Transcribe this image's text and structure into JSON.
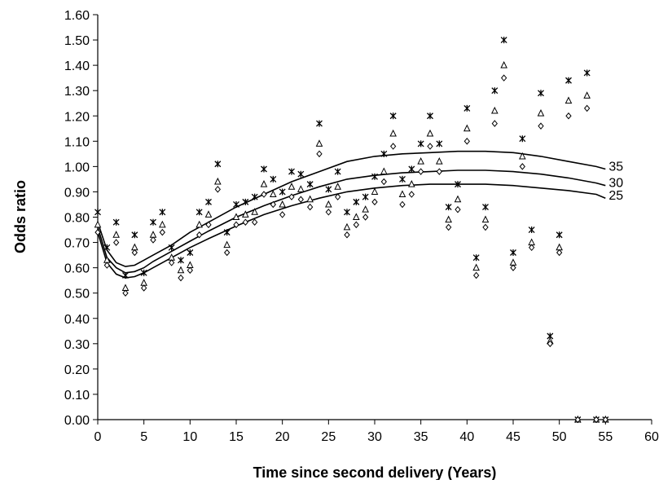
{
  "chart_data": {
    "type": "scatter",
    "title": "",
    "xlabel": "Time since second delivery (Years)",
    "ylabel": "Odds ratio",
    "xlim": [
      0,
      60
    ],
    "ylim": [
      0,
      1.6
    ],
    "x_ticks": [
      "0",
      "5",
      "10",
      "15",
      "20",
      "25",
      "30",
      "35",
      "40",
      "45",
      "50",
      "55",
      "60"
    ],
    "y_ticks": [
      "0.00",
      "0.10",
      "0.20",
      "0.30",
      "0.40",
      "0.50",
      "0.60",
      "0.70",
      "0.80",
      "0.90",
      "1.00",
      "1.10",
      "1.20",
      "1.30",
      "1.40",
      "1.50",
      "1.60"
    ],
    "grid": false,
    "legend": "none",
    "curves": [
      {
        "label": "35",
        "x": [
          0,
          1,
          2,
          3,
          4,
          5,
          6,
          8,
          10,
          12,
          15,
          18,
          21,
          24,
          27,
          30,
          33,
          36,
          39,
          42,
          45,
          48,
          51,
          54,
          55
        ],
        "y": [
          0.78,
          0.67,
          0.62,
          0.605,
          0.61,
          0.63,
          0.65,
          0.69,
          0.74,
          0.78,
          0.84,
          0.89,
          0.94,
          0.98,
          1.02,
          1.04,
          1.05,
          1.055,
          1.06,
          1.06,
          1.055,
          1.04,
          1.02,
          1.0,
          0.99
        ]
      },
      {
        "label": "30",
        "x": [
          0,
          1,
          2,
          3,
          4,
          5,
          6,
          8,
          10,
          12,
          15,
          18,
          21,
          24,
          27,
          30,
          33,
          36,
          39,
          42,
          45,
          48,
          51,
          54,
          55
        ],
        "y": [
          0.76,
          0.64,
          0.6,
          0.58,
          0.585,
          0.6,
          0.625,
          0.665,
          0.705,
          0.745,
          0.8,
          0.845,
          0.885,
          0.92,
          0.95,
          0.965,
          0.975,
          0.98,
          0.985,
          0.985,
          0.98,
          0.97,
          0.955,
          0.935,
          0.925
        ]
      },
      {
        "label": "25",
        "x": [
          0,
          1,
          2,
          3,
          4,
          5,
          6,
          8,
          10,
          12,
          15,
          18,
          21,
          24,
          27,
          30,
          33,
          36,
          39,
          42,
          45,
          48,
          51,
          54,
          55
        ],
        "y": [
          0.74,
          0.62,
          0.575,
          0.56,
          0.565,
          0.58,
          0.6,
          0.64,
          0.68,
          0.715,
          0.765,
          0.81,
          0.845,
          0.875,
          0.9,
          0.915,
          0.925,
          0.93,
          0.93,
          0.93,
          0.925,
          0.915,
          0.905,
          0.89,
          0.875
        ]
      }
    ],
    "series": [
      {
        "name": "35",
        "marker": "asterisk",
        "points": [
          [
            0,
            0.82
          ],
          [
            1,
            0.68
          ],
          [
            2,
            0.78
          ],
          [
            3,
            0.57
          ],
          [
            4,
            0.73
          ],
          [
            5,
            0.58
          ],
          [
            6,
            0.78
          ],
          [
            7,
            0.82
          ],
          [
            8,
            0.68
          ],
          [
            9,
            0.63
          ],
          [
            10,
            0.66
          ],
          [
            11,
            0.82
          ],
          [
            12,
            0.86
          ],
          [
            13,
            1.01
          ],
          [
            14,
            0.74
          ],
          [
            15,
            0.85
          ],
          [
            16,
            0.86
          ],
          [
            17,
            0.88
          ],
          [
            18,
            0.99
          ],
          [
            19,
            0.95
          ],
          [
            20,
            0.9
          ],
          [
            21,
            0.98
          ],
          [
            22,
            0.97
          ],
          [
            23,
            0.93
          ],
          [
            24,
            1.17
          ],
          [
            25,
            0.91
          ],
          [
            26,
            0.98
          ],
          [
            27,
            0.82
          ],
          [
            28,
            0.86
          ],
          [
            29,
            0.88
          ],
          [
            30,
            0.96
          ],
          [
            31,
            1.05
          ],
          [
            32,
            1.2
          ],
          [
            33,
            0.95
          ],
          [
            34,
            0.99
          ],
          [
            35,
            1.09
          ],
          [
            36,
            1.2
          ],
          [
            37,
            1.09
          ],
          [
            38,
            0.84
          ],
          [
            39,
            0.93
          ],
          [
            40,
            1.23
          ],
          [
            41,
            0.64
          ],
          [
            42,
            0.84
          ],
          [
            43,
            1.3
          ],
          [
            44,
            1.5
          ],
          [
            45,
            0.66
          ],
          [
            46,
            1.11
          ],
          [
            47,
            0.75
          ],
          [
            48,
            1.29
          ],
          [
            49,
            0.33
          ],
          [
            50,
            0.73
          ],
          [
            51,
            1.34
          ],
          [
            52,
            0.0
          ],
          [
            53,
            1.37
          ],
          [
            54,
            0.0
          ],
          [
            55,
            0.0
          ]
        ]
      },
      {
        "name": "30",
        "marker": "triangle",
        "points": [
          [
            0,
            0.77
          ],
          [
            1,
            0.63
          ],
          [
            2,
            0.73
          ],
          [
            3,
            0.52
          ],
          [
            4,
            0.68
          ],
          [
            5,
            0.54
          ],
          [
            6,
            0.73
          ],
          [
            7,
            0.77
          ],
          [
            8,
            0.64
          ],
          [
            9,
            0.59
          ],
          [
            10,
            0.61
          ],
          [
            11,
            0.77
          ],
          [
            12,
            0.81
          ],
          [
            13,
            0.94
          ],
          [
            14,
            0.69
          ],
          [
            15,
            0.8
          ],
          [
            16,
            0.81
          ],
          [
            17,
            0.82
          ],
          [
            18,
            0.93
          ],
          [
            19,
            0.89
          ],
          [
            20,
            0.85
          ],
          [
            21,
            0.92
          ],
          [
            22,
            0.91
          ],
          [
            23,
            0.87
          ],
          [
            24,
            1.09
          ],
          [
            25,
            0.85
          ],
          [
            26,
            0.92
          ],
          [
            27,
            0.76
          ],
          [
            28,
            0.8
          ],
          [
            29,
            0.83
          ],
          [
            30,
            0.9
          ],
          [
            31,
            0.98
          ],
          [
            32,
            1.13
          ],
          [
            33,
            0.89
          ],
          [
            34,
            0.93
          ],
          [
            35,
            1.02
          ],
          [
            36,
            1.13
          ],
          [
            37,
            1.02
          ],
          [
            38,
            0.79
          ],
          [
            39,
            0.87
          ],
          [
            40,
            1.15
          ],
          [
            41,
            0.6
          ],
          [
            42,
            0.79
          ],
          [
            43,
            1.22
          ],
          [
            44,
            1.4
          ],
          [
            45,
            0.62
          ],
          [
            46,
            1.04
          ],
          [
            47,
            0.7
          ],
          [
            48,
            1.21
          ],
          [
            49,
            0.31
          ],
          [
            50,
            0.68
          ],
          [
            51,
            1.26
          ],
          [
            52,
            0.0
          ],
          [
            53,
            1.28
          ],
          [
            54,
            0.0
          ],
          [
            55,
            0.0
          ]
        ]
      },
      {
        "name": "25",
        "marker": "diamond",
        "points": [
          [
            0,
            0.74
          ],
          [
            1,
            0.61
          ],
          [
            2,
            0.7
          ],
          [
            3,
            0.5
          ],
          [
            4,
            0.66
          ],
          [
            5,
            0.52
          ],
          [
            6,
            0.71
          ],
          [
            7,
            0.74
          ],
          [
            8,
            0.62
          ],
          [
            9,
            0.56
          ],
          [
            10,
            0.59
          ],
          [
            11,
            0.73
          ],
          [
            12,
            0.77
          ],
          [
            13,
            0.91
          ],
          [
            14,
            0.66
          ],
          [
            15,
            0.77
          ],
          [
            16,
            0.78
          ],
          [
            17,
            0.78
          ],
          [
            18,
            0.89
          ],
          [
            19,
            0.85
          ],
          [
            20,
            0.81
          ],
          [
            21,
            0.88
          ],
          [
            22,
            0.87
          ],
          [
            23,
            0.84
          ],
          [
            24,
            1.05
          ],
          [
            25,
            0.82
          ],
          [
            26,
            0.88
          ],
          [
            27,
            0.73
          ],
          [
            28,
            0.77
          ],
          [
            29,
            0.8
          ],
          [
            30,
            0.86
          ],
          [
            31,
            0.94
          ],
          [
            32,
            1.08
          ],
          [
            33,
            0.85
          ],
          [
            34,
            0.89
          ],
          [
            35,
            0.98
          ],
          [
            36,
            1.08
          ],
          [
            37,
            0.98
          ],
          [
            38,
            0.76
          ],
          [
            39,
            0.83
          ],
          [
            40,
            1.1
          ],
          [
            41,
            0.57
          ],
          [
            42,
            0.76
          ],
          [
            43,
            1.17
          ],
          [
            44,
            1.35
          ],
          [
            45,
            0.6
          ],
          [
            46,
            1.0
          ],
          [
            47,
            0.68
          ],
          [
            48,
            1.16
          ],
          [
            49,
            0.3
          ],
          [
            50,
            0.66
          ],
          [
            51,
            1.2
          ],
          [
            52,
            0.0
          ],
          [
            53,
            1.23
          ],
          [
            54,
            0.0
          ],
          [
            55,
            0.0
          ]
        ]
      }
    ]
  }
}
